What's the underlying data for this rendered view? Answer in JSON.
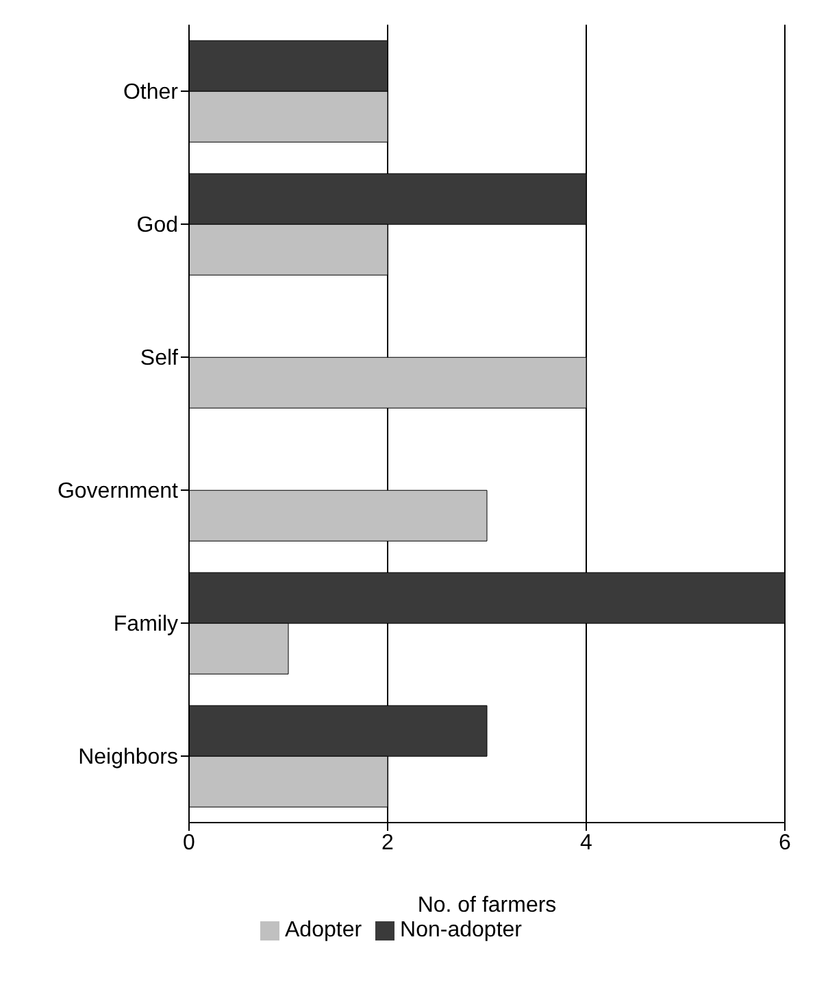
{
  "chart_data": {
    "type": "bar",
    "orientation": "horizontal",
    "xlabel": "No. of farmers",
    "categories": [
      "Other",
      "God",
      "Self",
      "Government",
      "Family",
      "Neighbors"
    ],
    "series": [
      {
        "name": "Non-adopter",
        "color": "#3a3a3a",
        "values": [
          2,
          4,
          0,
          0,
          6,
          3
        ]
      },
      {
        "name": "Adopter",
        "color": "#c0c0c0",
        "values": [
          2,
          2,
          4,
          3,
          1,
          2
        ]
      }
    ],
    "xlim": [
      0,
      6
    ],
    "xticks": [
      0,
      2,
      4,
      6
    ],
    "grid": "x",
    "legend": "bottom"
  }
}
